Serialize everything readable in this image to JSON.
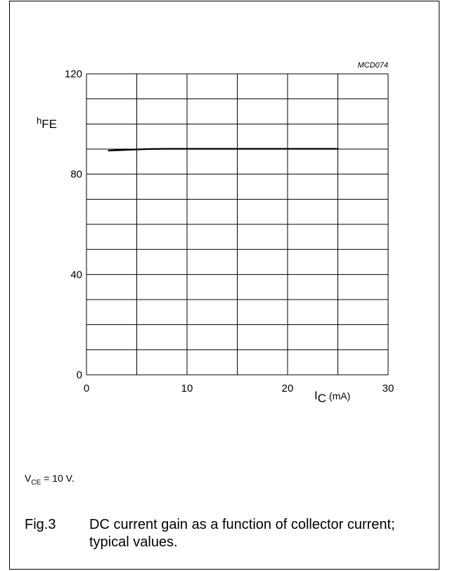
{
  "chart_data": {
    "type": "line",
    "code": "MCD074",
    "ylabel_main": "h",
    "ylabel_sub": "FE",
    "xlabel_main": "I",
    "xlabel_sub": "C",
    "xlabel_unit": " (mA)",
    "xlim": [
      0,
      30
    ],
    "ylim": [
      0,
      120
    ],
    "x_ticks": [
      0,
      10,
      20,
      30
    ],
    "y_ticks": [
      0,
      40,
      80,
      120
    ],
    "x_grid_step": 5,
    "y_grid_step": 10,
    "grid": true,
    "series": [
      {
        "x": [
          2.2,
          4,
          6,
          8,
          10,
          15,
          20,
          25
        ],
        "y": [
          89.4,
          89.7,
          90.0,
          90.1,
          90.1,
          90.1,
          90.1,
          90.1
        ]
      }
    ]
  },
  "condition": {
    "main": "V",
    "sub": "CE",
    "rest": " = 10 V."
  },
  "caption": {
    "number": "Fig.3",
    "text": "DC current gain as a function of collector current; typical values."
  }
}
